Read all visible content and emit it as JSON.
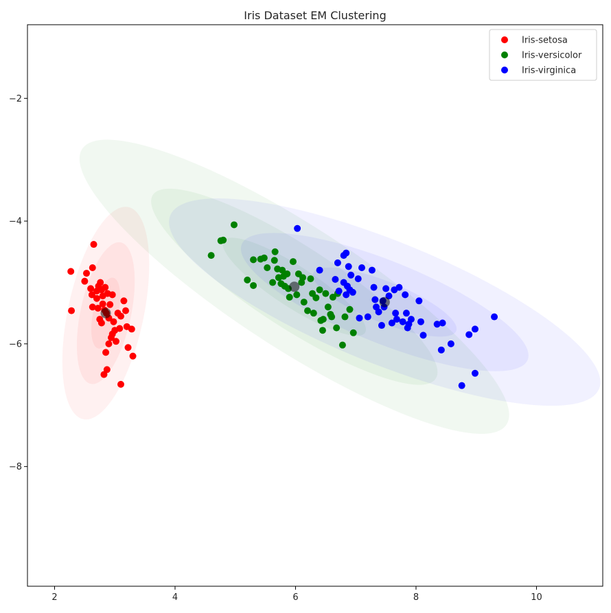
{
  "chart_data": {
    "type": "scatter",
    "title": "Iris Dataset EM Clustering",
    "xlabel": "",
    "ylabel": "",
    "xlim": [
      1.55,
      11.1
    ],
    "ylim": [
      -9.95,
      -0.8
    ],
    "xticks": [
      2,
      4,
      6,
      8,
      10
    ],
    "yticks": [
      -2,
      -4,
      -6,
      -8
    ],
    "xtick_labels": [
      "2",
      "4",
      "6",
      "8",
      "10"
    ],
    "ytick_labels": [
      "−2",
      "−4",
      "−6",
      "−8"
    ],
    "grid": false,
    "legend_position": "top-right",
    "series": [
      {
        "name": "Iris-setosa",
        "color": "#ff0000",
        "points": [
          [
            2.27,
            -4.82
          ],
          [
            2.28,
            -5.46
          ],
          [
            2.5,
            -4.98
          ],
          [
            2.53,
            -4.85
          ],
          [
            2.63,
            -4.76
          ],
          [
            2.65,
            -4.38
          ],
          [
            2.6,
            -5.1
          ],
          [
            2.62,
            -5.2
          ],
          [
            2.63,
            -5.4
          ],
          [
            2.7,
            -5.14
          ],
          [
            2.7,
            -5.26
          ],
          [
            2.73,
            -5.06
          ],
          [
            2.76,
            -5.0
          ],
          [
            2.78,
            -5.12
          ],
          [
            2.8,
            -5.22
          ],
          [
            2.84,
            -5.08
          ],
          [
            2.88,
            -5.18
          ],
          [
            2.75,
            -5.6
          ],
          [
            2.78,
            -5.66
          ],
          [
            2.83,
            -5.45
          ],
          [
            2.86,
            -5.5
          ],
          [
            2.9,
            -5.58
          ],
          [
            2.92,
            -5.36
          ],
          [
            2.96,
            -5.2
          ],
          [
            2.98,
            -5.64
          ],
          [
            3.0,
            -5.78
          ],
          [
            2.94,
            -5.9
          ],
          [
            2.9,
            -6.0
          ],
          [
            2.96,
            -5.84
          ],
          [
            3.02,
            -5.96
          ],
          [
            3.05,
            -5.5
          ],
          [
            3.1,
            -5.55
          ],
          [
            3.08,
            -5.75
          ],
          [
            3.15,
            -5.3
          ],
          [
            3.18,
            -5.46
          ],
          [
            3.2,
            -5.72
          ],
          [
            3.28,
            -5.76
          ],
          [
            3.22,
            -6.06
          ],
          [
            3.3,
            -6.2
          ],
          [
            3.1,
            -6.66
          ],
          [
            2.85,
            -6.14
          ],
          [
            2.82,
            -6.5
          ],
          [
            2.87,
            -6.42
          ],
          [
            2.72,
            -5.42
          ],
          [
            2.8,
            -5.35
          ]
        ]
      },
      {
        "name": "Iris-versicolor",
        "color": "#008000",
        "points": [
          [
            4.6,
            -4.56
          ],
          [
            4.76,
            -4.32
          ],
          [
            4.8,
            -4.31
          ],
          [
            4.98,
            -4.06
          ],
          [
            5.2,
            -4.96
          ],
          [
            5.3,
            -4.63
          ],
          [
            5.3,
            -5.05
          ],
          [
            5.42,
            -4.62
          ],
          [
            5.48,
            -4.6
          ],
          [
            5.53,
            -4.76
          ],
          [
            5.62,
            -5.0
          ],
          [
            5.65,
            -4.64
          ],
          [
            5.66,
            -4.5
          ],
          [
            5.7,
            -4.78
          ],
          [
            5.72,
            -4.92
          ],
          [
            5.76,
            -5.02
          ],
          [
            5.78,
            -4.8
          ],
          [
            5.8,
            -4.9
          ],
          [
            5.82,
            -5.06
          ],
          [
            5.86,
            -4.86
          ],
          [
            5.88,
            -5.1
          ],
          [
            5.9,
            -5.24
          ],
          [
            5.96,
            -4.66
          ],
          [
            6.02,
            -5.2
          ],
          [
            6.05,
            -4.86
          ],
          [
            6.1,
            -5.0
          ],
          [
            6.12,
            -4.92
          ],
          [
            6.14,
            -5.32
          ],
          [
            6.2,
            -5.46
          ],
          [
            6.25,
            -4.94
          ],
          [
            6.28,
            -5.18
          ],
          [
            6.3,
            -5.5
          ],
          [
            6.34,
            -5.25
          ],
          [
            6.4,
            -5.12
          ],
          [
            6.42,
            -5.62
          ],
          [
            6.45,
            -5.78
          ],
          [
            6.46,
            -5.6
          ],
          [
            6.5,
            -5.18
          ],
          [
            6.54,
            -5.4
          ],
          [
            6.58,
            -5.52
          ],
          [
            6.6,
            -5.56
          ],
          [
            6.62,
            -5.24
          ],
          [
            6.68,
            -5.74
          ],
          [
            6.7,
            -5.18
          ],
          [
            6.78,
            -6.02
          ],
          [
            6.82,
            -5.56
          ],
          [
            6.9,
            -5.44
          ],
          [
            6.96,
            -5.82
          ]
        ]
      },
      {
        "name": "Iris-virginica",
        "color": "#0000ff",
        "points": [
          [
            6.03,
            -4.12
          ],
          [
            6.4,
            -4.8
          ],
          [
            6.66,
            -4.95
          ],
          [
            6.7,
            -4.68
          ],
          [
            6.8,
            -4.56
          ],
          [
            6.84,
            -4.52
          ],
          [
            6.88,
            -4.74
          ],
          [
            6.92,
            -4.88
          ],
          [
            6.72,
            -5.14
          ],
          [
            6.8,
            -5.0
          ],
          [
            6.84,
            -5.2
          ],
          [
            6.86,
            -5.06
          ],
          [
            6.9,
            -5.12
          ],
          [
            6.95,
            -5.16
          ],
          [
            7.04,
            -4.94
          ],
          [
            7.1,
            -4.76
          ],
          [
            7.06,
            -5.58
          ],
          [
            7.2,
            -5.56
          ],
          [
            7.27,
            -4.8
          ],
          [
            7.3,
            -5.08
          ],
          [
            7.32,
            -5.28
          ],
          [
            7.34,
            -5.4
          ],
          [
            7.38,
            -5.48
          ],
          [
            7.43,
            -5.7
          ],
          [
            7.45,
            -5.3
          ],
          [
            7.47,
            -5.4
          ],
          [
            7.5,
            -5.1
          ],
          [
            7.55,
            -5.22
          ],
          [
            7.6,
            -5.66
          ],
          [
            7.64,
            -5.12
          ],
          [
            7.66,
            -5.5
          ],
          [
            7.68,
            -5.6
          ],
          [
            7.72,
            -5.08
          ],
          [
            7.78,
            -5.64
          ],
          [
            7.82,
            -5.2
          ],
          [
            7.84,
            -5.5
          ],
          [
            7.86,
            -5.74
          ],
          [
            7.88,
            -5.68
          ],
          [
            7.92,
            -5.6
          ],
          [
            8.05,
            -5.3
          ],
          [
            8.08,
            -5.64
          ],
          [
            8.12,
            -5.86
          ],
          [
            8.35,
            -5.68
          ],
          [
            8.44,
            -5.66
          ],
          [
            8.42,
            -6.1
          ],
          [
            8.58,
            -6.0
          ],
          [
            8.76,
            -6.68
          ],
          [
            8.88,
            -5.85
          ],
          [
            8.98,
            -5.76
          ],
          [
            8.98,
            -6.48
          ],
          [
            9.3,
            -5.56
          ]
        ]
      }
    ],
    "means": [
      {
        "name": "Iris-setosa",
        "x": 2.85,
        "y": -5.5
      },
      {
        "name": "Iris-versicolor",
        "x": 5.98,
        "y": -5.07
      },
      {
        "name": "Iris-virginica",
        "x": 7.48,
        "y": -5.32
      }
    ],
    "ellipses": [
      {
        "cluster": "Iris-setosa",
        "color": "#ff0000",
        "cx": 2.85,
        "cy": -5.5,
        "a": 0.6,
        "b": 0.21,
        "angle_deg": 78,
        "levels": [
          1,
          2,
          3
        ]
      },
      {
        "cluster": "Iris-versicolor",
        "color": "#008000",
        "cx": 5.98,
        "cy": -5.07,
        "a": 1.4,
        "b": 0.34,
        "angle_deg": 147,
        "levels": [
          1,
          2,
          3
        ]
      },
      {
        "cluster": "Iris-virginica",
        "color": "#0000ff",
        "cx": 7.48,
        "cy": -5.32,
        "a": 1.28,
        "b": 0.34,
        "angle_deg": 158,
        "levels": [
          1,
          2,
          3
        ]
      }
    ]
  }
}
